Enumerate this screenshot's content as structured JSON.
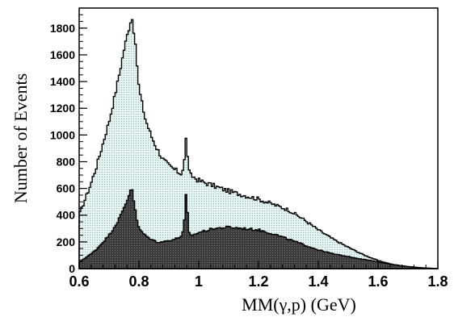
{
  "chart_data": {
    "type": "area",
    "title": "",
    "xlabel": "MM(γ,p)   (GeV)",
    "ylabel": "Number of  Events",
    "xlim": [
      0.6,
      1.8
    ],
    "ylim": [
      0,
      1950
    ],
    "x_ticks": [
      0.6,
      0.8,
      1,
      1.2,
      1.4,
      1.6,
      1.8
    ],
    "x_tick_labels": [
      "0.6",
      "0.8",
      "1",
      "1.2",
      "1.4",
      "1.6",
      "1.8"
    ],
    "y_ticks": [
      0,
      200,
      400,
      600,
      800,
      1000,
      1200,
      1400,
      1600,
      1800
    ],
    "y_tick_labels": [
      "0",
      "200",
      "400",
      "600",
      "800",
      "1000",
      "1200",
      "1400",
      "1600",
      "1800"
    ],
    "grid": false,
    "legend": "none",
    "series": [
      {
        "fill": "light dotted",
        "color": "#dff0ec",
        "x": [
          0.6,
          0.62,
          0.64,
          0.66,
          0.68,
          0.7,
          0.72,
          0.74,
          0.75,
          0.76,
          0.77,
          0.775,
          0.78,
          0.79,
          0.8,
          0.82,
          0.84,
          0.86,
          0.88,
          0.9,
          0.92,
          0.94,
          0.95,
          0.955,
          0.958,
          0.962,
          0.965,
          0.97,
          0.98,
          1.0,
          1.05,
          1.1,
          1.15,
          1.2,
          1.25,
          1.3,
          1.35,
          1.4,
          1.45,
          1.5,
          1.55,
          1.6,
          1.65,
          1.7,
          1.75,
          1.8
        ],
        "y": [
          400,
          520,
          640,
          780,
          940,
          1100,
          1300,
          1520,
          1640,
          1740,
          1830,
          1890,
          1840,
          1620,
          1350,
          1130,
          1000,
          900,
          820,
          770,
          740,
          710,
          760,
          900,
          990,
          880,
          760,
          700,
          690,
          660,
          620,
          580,
          550,
          520,
          480,
          440,
          370,
          290,
          220,
          160,
          105,
          60,
          30,
          15,
          5,
          0
        ]
      },
      {
        "fill": "dark hatched",
        "color": "#4a4a4a",
        "x": [
          0.6,
          0.62,
          0.64,
          0.66,
          0.68,
          0.7,
          0.72,
          0.74,
          0.76,
          0.77,
          0.775,
          0.78,
          0.79,
          0.8,
          0.82,
          0.84,
          0.86,
          0.88,
          0.9,
          0.92,
          0.94,
          0.95,
          0.955,
          0.958,
          0.962,
          0.965,
          0.97,
          0.98,
          1.0,
          1.05,
          1.1,
          1.15,
          1.2,
          1.25,
          1.3,
          1.35,
          1.4,
          1.45,
          1.5,
          1.55,
          1.6,
          1.65,
          1.7,
          1.75,
          1.8
        ],
        "y": [
          50,
          80,
          110,
          150,
          200,
          250,
          320,
          400,
          510,
          580,
          620,
          560,
          400,
          300,
          250,
          220,
          200,
          200,
          210,
          220,
          240,
          290,
          470,
          570,
          450,
          290,
          250,
          250,
          270,
          300,
          310,
          300,
          290,
          260,
          220,
          180,
          140,
          110,
          90,
          70,
          50,
          30,
          15,
          5,
          0
        ]
      }
    ]
  }
}
